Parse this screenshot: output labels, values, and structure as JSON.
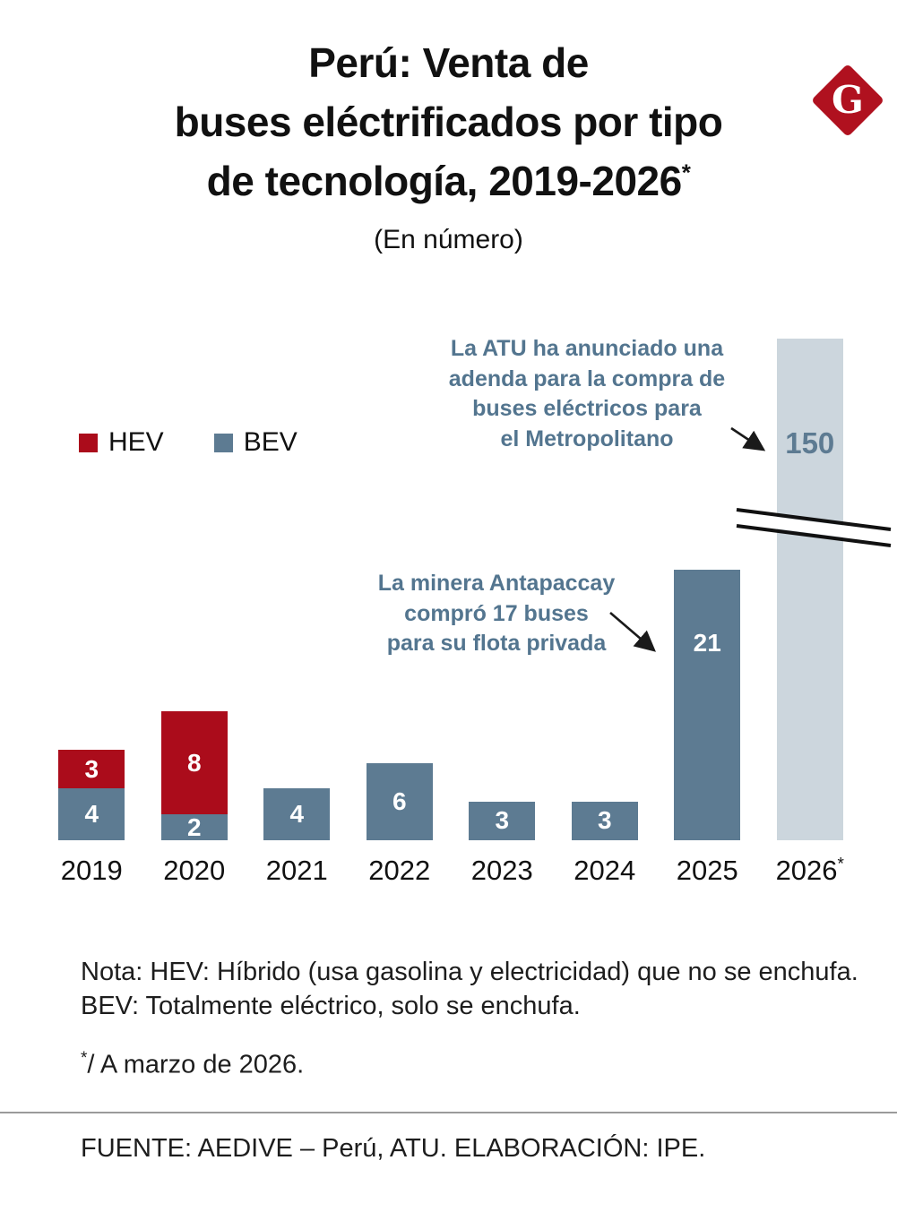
{
  "logo": {
    "letter": "G",
    "bg_color": "#b0111f"
  },
  "header": {
    "title_lines": [
      "Perú: Venta de",
      "buses eléctrificados por tipo",
      "de tecnología, 2019-2026"
    ],
    "title_superscript": "*",
    "subtitle": "(En número)"
  },
  "legend": [
    {
      "label": "HEV",
      "series": "HEV"
    },
    {
      "label": "BEV",
      "series": "BEV"
    }
  ],
  "annotations": [
    {
      "id": "atu",
      "lines": [
        "La ATU ha anunciado una",
        "adenda para la compra de",
        "buses eléctricos para",
        "el Metropolitano"
      ]
    },
    {
      "id": "antapaccay",
      "lines": [
        "La minera Antapaccay",
        "compró 17 buses",
        "para su flota privada"
      ]
    }
  ],
  "chart_data": {
    "type": "bar",
    "stacked": true,
    "title": "Perú: Venta de buses eléctrificados por tipo de tecnología, 2019-2026*",
    "subtitle": "(En número)",
    "categories": [
      "2019",
      "2020",
      "2021",
      "2022",
      "2023",
      "2024",
      "2025",
      "2026*"
    ],
    "series": [
      {
        "name": "BEV",
        "color": "#5d7b92",
        "values": [
          4,
          2,
          4,
          6,
          3,
          3,
          21,
          150
        ]
      },
      {
        "name": "HEV",
        "color": "#ab0c1b",
        "values": [
          3,
          8,
          0,
          0,
          0,
          0,
          0,
          0
        ]
      }
    ],
    "totals": [
      7,
      10,
      4,
      6,
      3,
      3,
      21,
      150
    ],
    "y_axis_visible": false,
    "grid": false,
    "legend_position": "left-upper",
    "axis_break": {
      "category": "2026*",
      "note": "barra truncada con doble línea de corte; el valor 150 excede la escala"
    },
    "capped_bar_color": "#ccd6dd",
    "capped_label_color": "#5d7b92"
  },
  "notes": {
    "line1": "Nota: HEV: Híbrido (usa gasolina y electricidad) que no se enchufa.",
    "line2": "BEV: Totalmente eléctrico, solo se enchufa.",
    "asterisk_mark": "*",
    "asterisk_text": "/ A marzo de 2026."
  },
  "source": "FUENTE: AEDIVE – Perú, ATU. ELABORACIÓN: IPE.",
  "colors": {
    "hev": "#ab0c1b",
    "bev": "#5d7b92",
    "bar_2026": "#ccd6dd",
    "annotation_text": "#53758f",
    "logo_bg": "#b0111f",
    "arrow": "#1a1a1a"
  }
}
